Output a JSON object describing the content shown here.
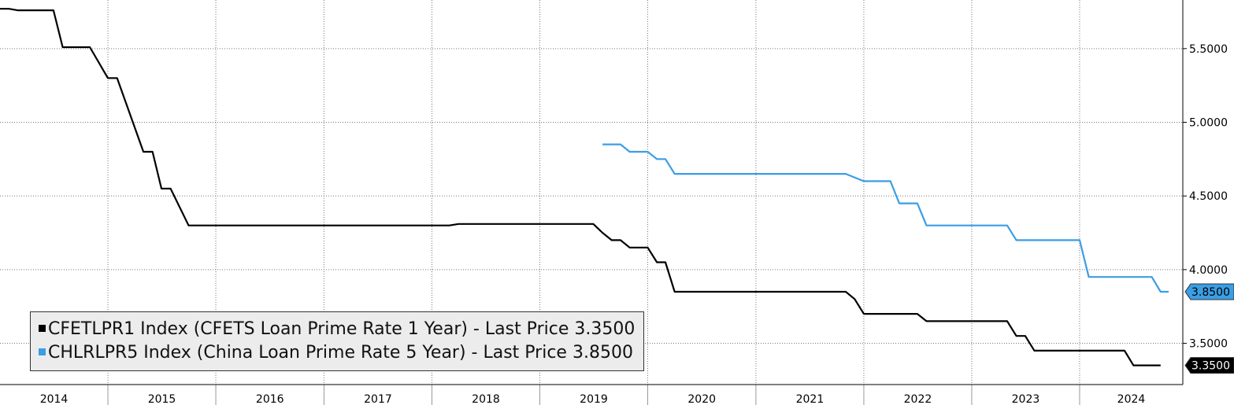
{
  "chart_data": {
    "type": "line",
    "title": "",
    "xlabel": "",
    "ylabel": "",
    "ylim": [
      3.22,
      5.83
    ],
    "xlim": [
      "2014-01-01",
      "2024-12-15"
    ],
    "grid": true,
    "legend_position": "bottom-left",
    "y_ticks": [
      "3.5000",
      "4.0000",
      "4.5000",
      "5.0000",
      "5.5000"
    ],
    "x_tick_labels": [
      "2014",
      "2015",
      "2016",
      "2017",
      "2018",
      "2019",
      "2020",
      "2021",
      "2022",
      "2023",
      "2024"
    ],
    "series": [
      {
        "name": "CFETLPR1 Index (CFETS Loan Prime Rate 1 Year) - Last Price",
        "legend_label": "CFETLPR1 Index (CFETS Loan Prime Rate 1 Year) - Last Price",
        "last_value_label": "3.3500",
        "last_price": "3.3500",
        "color": "#000000",
        "points": [
          [
            "2014-01-01",
            5.77
          ],
          [
            "2014-02-01",
            5.77
          ],
          [
            "2014-03-01",
            5.76
          ],
          [
            "2014-07-01",
            5.76
          ],
          [
            "2014-08-01",
            5.51
          ],
          [
            "2014-11-01",
            5.51
          ],
          [
            "2015-01-01",
            5.3
          ],
          [
            "2015-02-01",
            5.3
          ],
          [
            "2015-05-01",
            4.8
          ],
          [
            "2015-06-01",
            4.8
          ],
          [
            "2015-07-01",
            4.55
          ],
          [
            "2015-08-01",
            4.55
          ],
          [
            "2015-10-01",
            4.3
          ],
          [
            "2018-03-01",
            4.3
          ],
          [
            "2018-04-01",
            4.31
          ],
          [
            "2019-07-01",
            4.31
          ],
          [
            "2019-08-01",
            4.25
          ],
          [
            "2019-09-01",
            4.2
          ],
          [
            "2019-10-01",
            4.2
          ],
          [
            "2019-11-01",
            4.15
          ],
          [
            "2020-01-01",
            4.15
          ],
          [
            "2020-02-01",
            4.05
          ],
          [
            "2020-03-01",
            4.05
          ],
          [
            "2020-04-01",
            3.85
          ],
          [
            "2021-11-01",
            3.85
          ],
          [
            "2021-12-01",
            3.8
          ],
          [
            "2022-01-01",
            3.7
          ],
          [
            "2022-07-01",
            3.7
          ],
          [
            "2022-08-01",
            3.65
          ],
          [
            "2023-05-01",
            3.65
          ],
          [
            "2023-06-01",
            3.55
          ],
          [
            "2023-07-01",
            3.55
          ],
          [
            "2023-08-01",
            3.45
          ],
          [
            "2024-06-01",
            3.45
          ],
          [
            "2024-07-01",
            3.35
          ],
          [
            "2024-10-01",
            3.35
          ]
        ]
      },
      {
        "name": "CHLRLPR5 Index (China Loan Prime Rate 5 Year) - Last Price",
        "legend_label": "CHLRLPR5 Index (China Loan Prime Rate 5 Year) - Last Price",
        "last_value_label": "3.8500",
        "last_price": "3.8500",
        "color": "#3a9ee4",
        "points": [
          [
            "2019-08-01",
            4.85
          ],
          [
            "2019-10-01",
            4.85
          ],
          [
            "2019-11-01",
            4.8
          ],
          [
            "2020-01-01",
            4.8
          ],
          [
            "2020-02-01",
            4.75
          ],
          [
            "2020-03-01",
            4.75
          ],
          [
            "2020-04-01",
            4.65
          ],
          [
            "2021-11-01",
            4.65
          ],
          [
            "2022-01-01",
            4.6
          ],
          [
            "2022-04-01",
            4.6
          ],
          [
            "2022-05-01",
            4.45
          ],
          [
            "2022-07-01",
            4.45
          ],
          [
            "2022-08-01",
            4.3
          ],
          [
            "2023-05-01",
            4.3
          ],
          [
            "2023-06-01",
            4.2
          ],
          [
            "2024-01-01",
            4.2
          ],
          [
            "2024-02-01",
            3.95
          ],
          [
            "2024-09-01",
            3.95
          ],
          [
            "2024-10-01",
            3.85
          ],
          [
            "2024-10-28",
            3.85
          ]
        ]
      }
    ]
  }
}
